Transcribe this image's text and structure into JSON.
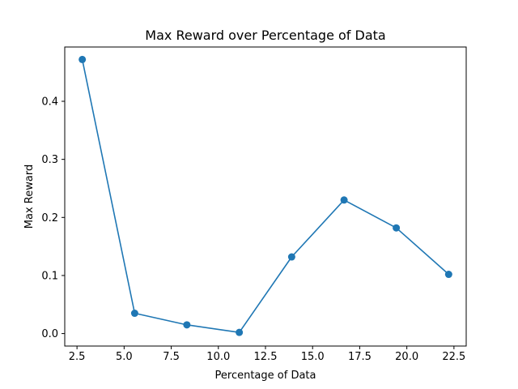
{
  "chart_data": {
    "type": "line",
    "title": "Max Reward over Percentage of Data",
    "xlabel": "Percentage of Data",
    "ylabel": "Max Reward",
    "xlim": [
      1.85,
      23.15
    ],
    "ylim": [
      -0.0215,
      0.4935
    ],
    "xticks": [
      2.5,
      5.0,
      7.5,
      10.0,
      12.5,
      15.0,
      17.5,
      20.0,
      22.5
    ],
    "xtick_labels": [
      "2.5",
      "5.0",
      "7.5",
      "10.0",
      "12.5",
      "15.0",
      "17.5",
      "20.0",
      "22.5"
    ],
    "yticks": [
      0.0,
      0.1,
      0.2,
      0.3,
      0.4
    ],
    "ytick_labels": [
      "0.0",
      "0.1",
      "0.2",
      "0.3",
      "0.4"
    ],
    "grid": false,
    "series": [
      {
        "color": "#1f77b4",
        "marker": "circle",
        "x": [
          2.78,
          5.56,
          8.33,
          11.11,
          13.89,
          16.67,
          19.44,
          22.22
        ],
        "y": [
          0.472,
          0.035,
          0.015,
          0.002,
          0.132,
          0.23,
          0.182,
          0.102
        ]
      }
    ]
  }
}
